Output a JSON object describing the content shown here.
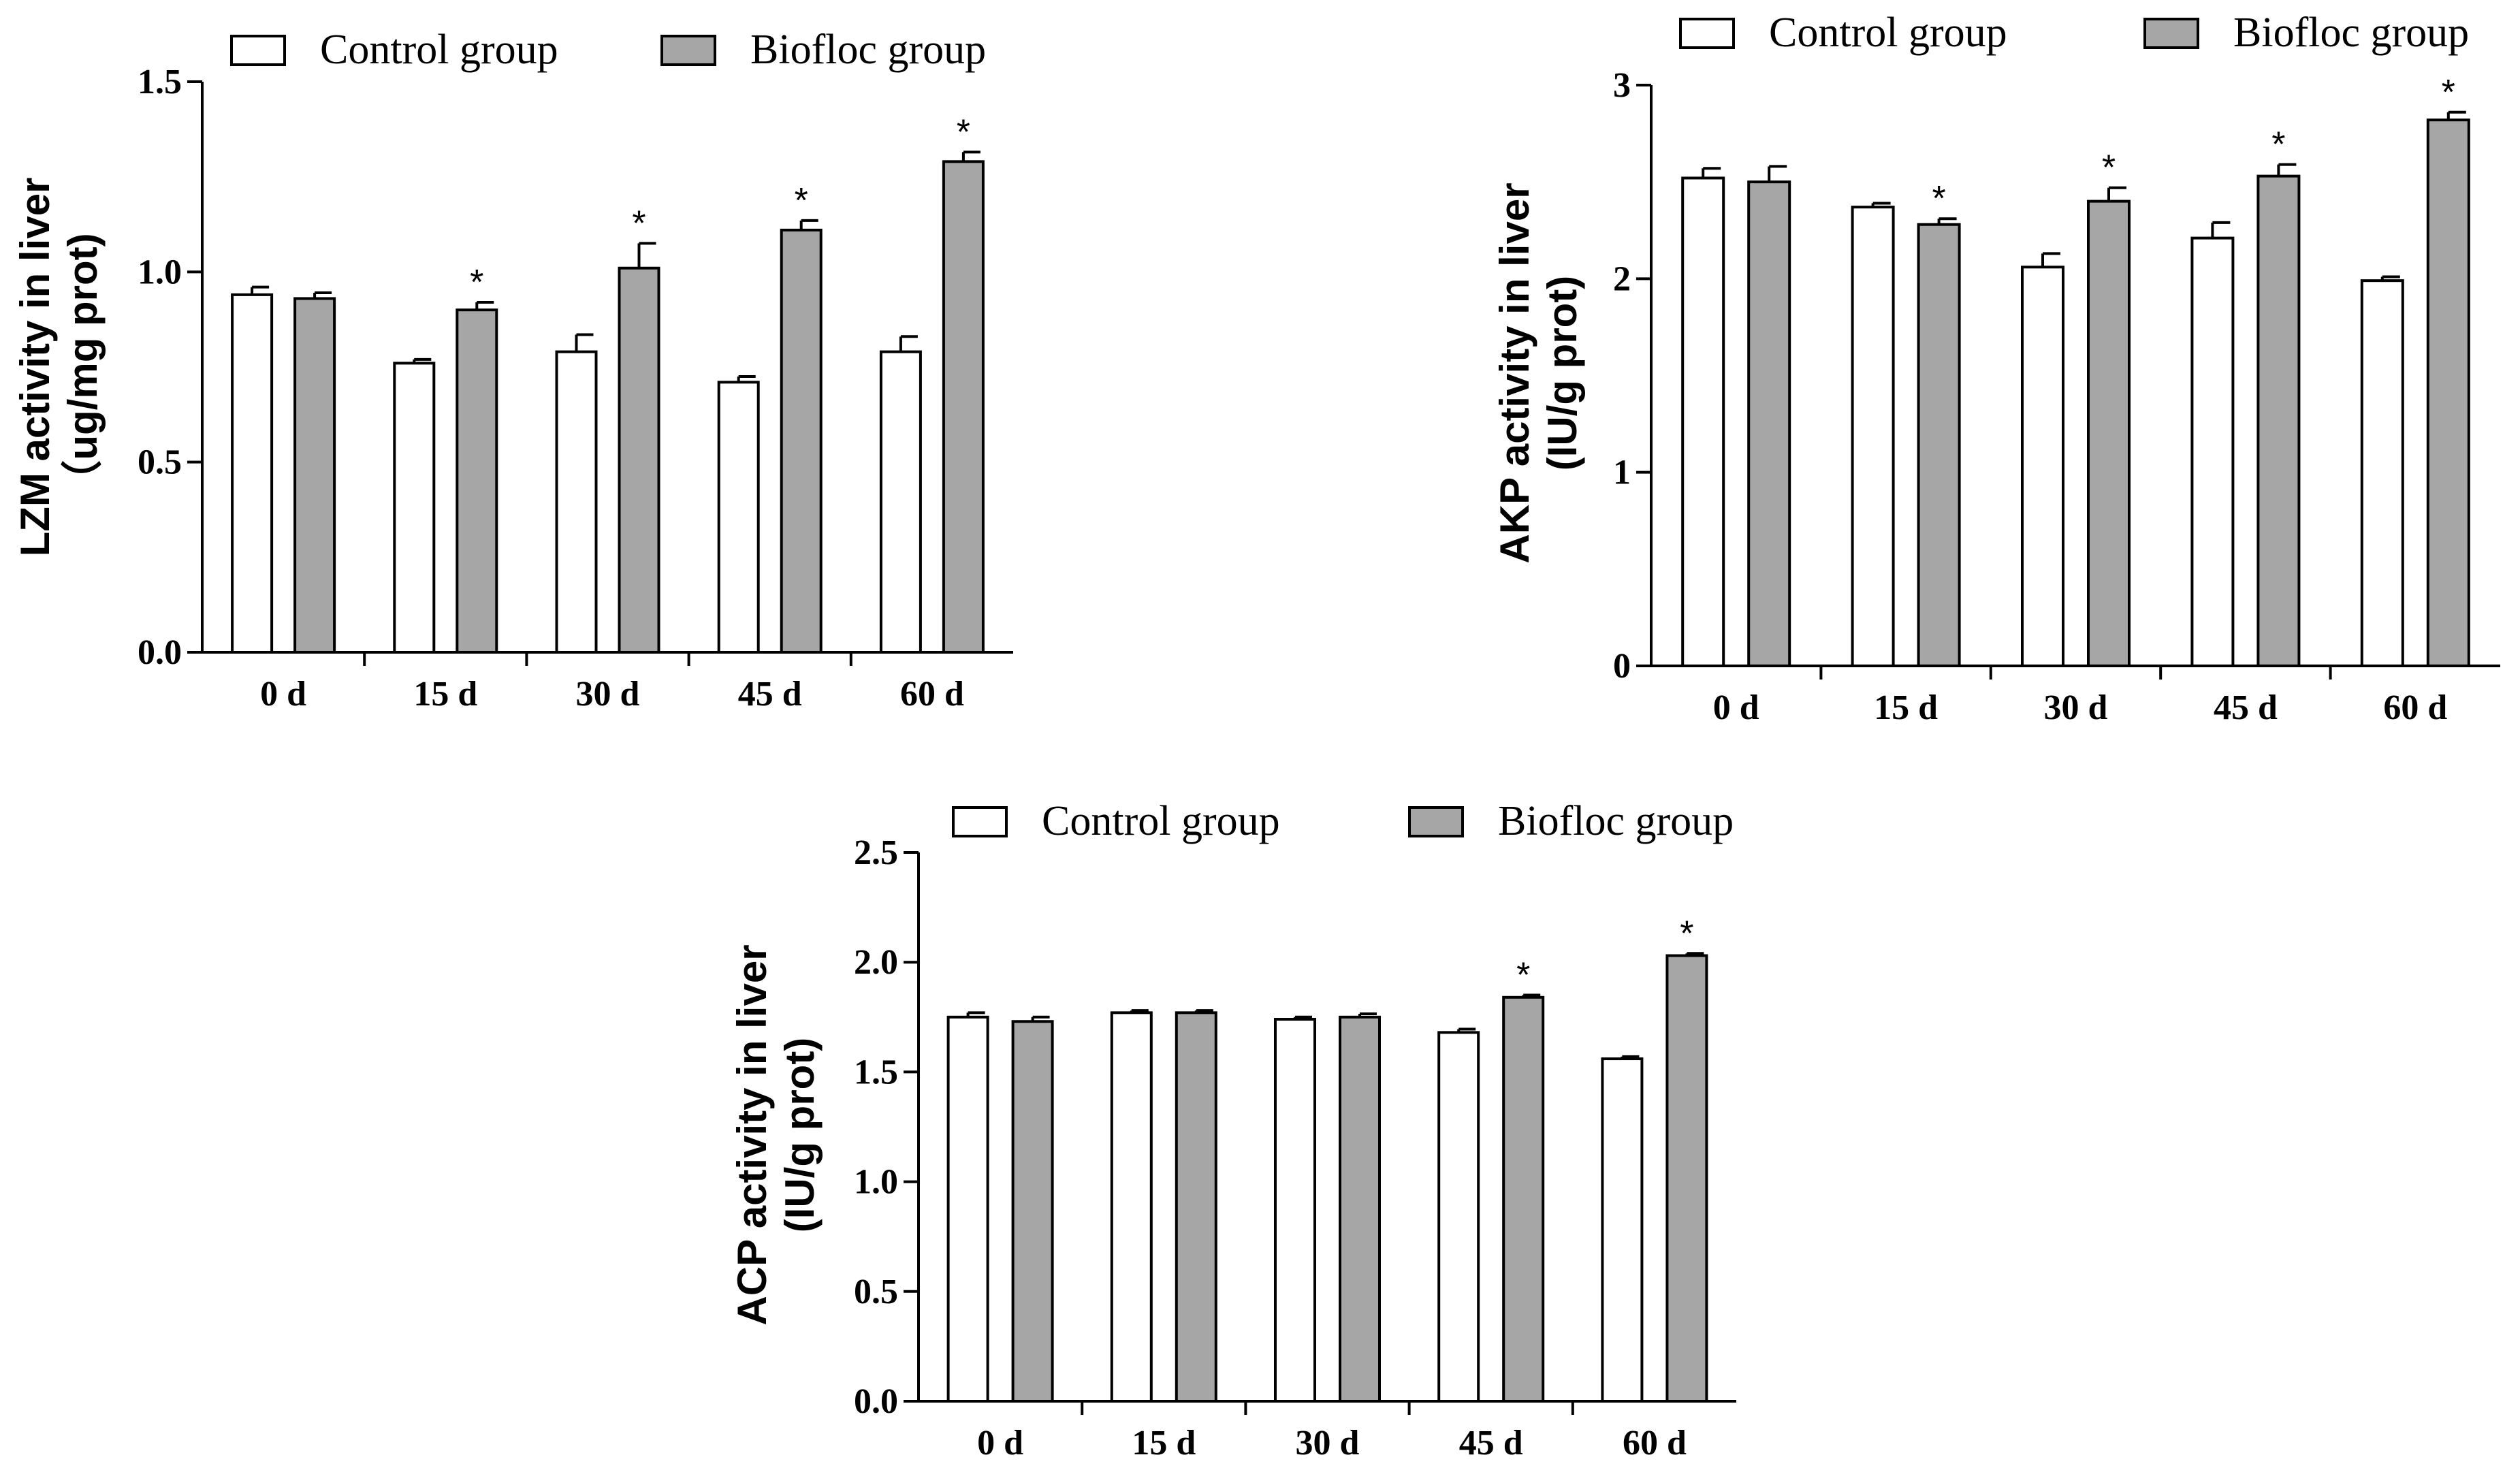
{
  "legend": {
    "control": "Control group",
    "biofloc": "Biofloc group"
  },
  "colors": {
    "control": "#ffffff",
    "biofloc": "#a6a6a6",
    "axis": "#000000"
  },
  "significance_marker": "*",
  "chart_data": [
    {
      "id": "lzm",
      "type": "bar",
      "ylabel_line1": "LZM activity in liver",
      "ylabel_line2": "（ug/mg prot)",
      "ylim": [
        0,
        1.5
      ],
      "yticks": [
        0,
        0.5,
        1.0,
        1.5
      ],
      "ytick_labels": [
        "0.0",
        "0.5",
        "1.0",
        "1.5"
      ],
      "categories": [
        "0 d",
        "15 d",
        "30 d",
        "45 d",
        "60 d"
      ],
      "series": [
        {
          "name": "Control group",
          "values": [
            0.94,
            0.76,
            0.79,
            0.71,
            0.79
          ],
          "errors": [
            0.02,
            0.01,
            0.045,
            0.015,
            0.04
          ]
        },
        {
          "name": "Biofloc group",
          "values": [
            0.93,
            0.9,
            1.01,
            1.11,
            1.29
          ],
          "errors": [
            0.015,
            0.02,
            0.065,
            0.025,
            0.025
          ],
          "significant": [
            false,
            true,
            true,
            true,
            true
          ]
        }
      ]
    },
    {
      "id": "akp",
      "type": "bar",
      "ylabel_line1": "AKP activity in liver",
      "ylabel_line2": "(IU/g prot)",
      "ylim": [
        0,
        3
      ],
      "yticks": [
        0,
        1,
        2,
        3
      ],
      "ytick_labels": [
        "0",
        "1",
        "2",
        "3"
      ],
      "categories": [
        "0 d",
        "15 d",
        "30 d",
        "45 d",
        "60 d"
      ],
      "series": [
        {
          "name": "Control group",
          "values": [
            2.52,
            2.37,
            2.06,
            2.21,
            1.99
          ],
          "errors": [
            0.05,
            0.02,
            0.07,
            0.08,
            0.02
          ]
        },
        {
          "name": "Biofloc group",
          "values": [
            2.5,
            2.28,
            2.4,
            2.53,
            2.82
          ],
          "errors": [
            0.08,
            0.03,
            0.07,
            0.06,
            0.04
          ],
          "significant": [
            false,
            true,
            true,
            true,
            true
          ]
        }
      ]
    },
    {
      "id": "acp",
      "type": "bar",
      "ylabel_line1": "ACP activity in liver",
      "ylabel_line2": "(IU/g prot)",
      "ylim": [
        0,
        2.5
      ],
      "yticks": [
        0,
        0.5,
        1.0,
        1.5,
        2.0,
        2.5
      ],
      "ytick_labels": [
        "0.0",
        "0.5",
        "1.0",
        "1.5",
        "2.0",
        "2.5"
      ],
      "categories": [
        "0 d",
        "15 d",
        "30 d",
        "45 d",
        "60 d"
      ],
      "series": [
        {
          "name": "Control group",
          "values": [
            1.75,
            1.77,
            1.74,
            1.68,
            1.56
          ],
          "errors": [
            0.02,
            0.01,
            0.01,
            0.015,
            0.01
          ]
        },
        {
          "name": "Biofloc group",
          "values": [
            1.73,
            1.77,
            1.75,
            1.84,
            2.03
          ],
          "errors": [
            0.02,
            0.01,
            0.015,
            0.01,
            0.01
          ],
          "significant": [
            false,
            false,
            false,
            true,
            true
          ]
        }
      ]
    }
  ]
}
